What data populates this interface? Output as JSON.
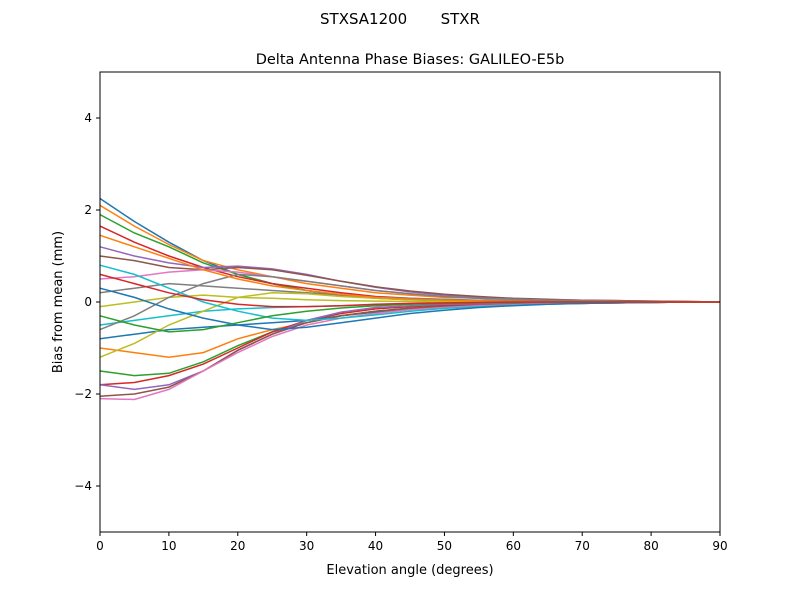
{
  "chart_data": {
    "type": "line",
    "suptitle": "STXSA1200       STXR",
    "title": "Delta Antenna Phase Biases: GALILEO-E5b",
    "xlabel": "Elevation angle (degrees)",
    "ylabel": "Bias from mean (mm)",
    "xlim": [
      0,
      90
    ],
    "ylim": [
      -5,
      5
    ],
    "xticks": [
      0,
      10,
      20,
      30,
      40,
      50,
      60,
      70,
      80,
      90
    ],
    "yticks": [
      -4,
      -2,
      0,
      2,
      4
    ],
    "ytick_labels": [
      "−4",
      "−2",
      "0",
      "2",
      "4"
    ],
    "grid": false,
    "colors": [
      "#1f77b4",
      "#ff7f0e",
      "#2ca02c",
      "#d62728",
      "#9467bd",
      "#8c564b",
      "#e377c2",
      "#7f7f7f",
      "#bcbd22",
      "#17becf"
    ],
    "x": [
      0,
      5,
      10,
      15,
      20,
      25,
      30,
      35,
      40,
      45,
      50,
      55,
      60,
      65,
      70,
      75,
      80,
      85,
      90
    ],
    "series": [
      {
        "values": [
          2.25,
          1.75,
          1.3,
          0.9,
          0.6,
          0.4,
          0.25,
          0.15,
          0.1,
          0.06,
          0.04,
          0.03,
          0.02,
          0.02,
          0.01,
          0.01,
          0,
          0,
          0
        ]
      },
      {
        "values": [
          2.1,
          1.65,
          1.25,
          0.9,
          0.7,
          0.55,
          0.4,
          0.3,
          0.2,
          0.15,
          0.1,
          0.08,
          0.06,
          0.05,
          0.04,
          0.03,
          0.02,
          0.01,
          0
        ]
      },
      {
        "values": [
          1.9,
          1.5,
          1.2,
          0.85,
          0.6,
          0.4,
          0.25,
          0.15,
          0.08,
          0.05,
          0.03,
          0.02,
          0.01,
          0.01,
          0,
          0,
          0,
          0,
          0
        ]
      },
      {
        "values": [
          1.65,
          1.3,
          1.0,
          0.75,
          0.55,
          0.4,
          0.3,
          0.2,
          0.12,
          0.08,
          0.05,
          0.03,
          0.02,
          0.01,
          0.01,
          0,
          0,
          0,
          0
        ]
      },
      {
        "values": [
          1.2,
          1.0,
          0.85,
          0.75,
          0.78,
          0.72,
          0.6,
          0.45,
          0.32,
          0.22,
          0.15,
          0.1,
          0.07,
          0.05,
          0.04,
          0.03,
          0.02,
          0.01,
          0
        ]
      },
      {
        "values": [
          1.0,
          0.9,
          0.75,
          0.7,
          0.75,
          0.7,
          0.58,
          0.45,
          0.33,
          0.24,
          0.17,
          0.12,
          0.08,
          0.06,
          0.04,
          0.03,
          0.02,
          0.01,
          0
        ]
      },
      {
        "values": [
          0.5,
          0.55,
          0.65,
          0.7,
          0.65,
          0.55,
          0.45,
          0.35,
          0.25,
          0.18,
          0.12,
          0.08,
          0.06,
          0.04,
          0.03,
          0.02,
          0.01,
          0,
          0
        ]
      },
      {
        "values": [
          0.2,
          0.3,
          0.4,
          0.35,
          0.3,
          0.25,
          0.2,
          0.15,
          0.1,
          0.08,
          0.06,
          0.04,
          0.03,
          0.02,
          0.01,
          0.01,
          0,
          0,
          0
        ]
      },
      {
        "values": [
          -0.1,
          0,
          0.1,
          0.15,
          0.1,
          0.08,
          0.05,
          0.03,
          0.02,
          0.01,
          0,
          0,
          0,
          0,
          0,
          0,
          0,
          0,
          0
        ]
      },
      {
        "values": [
          -0.5,
          -0.4,
          -0.3,
          -0.2,
          -0.15,
          -0.12,
          -0.1,
          -0.08,
          -0.06,
          -0.04,
          -0.03,
          -0.02,
          -0.01,
          0,
          0,
          0,
          0,
          0,
          0
        ]
      },
      {
        "values": [
          -0.8,
          -0.7,
          -0.6,
          -0.55,
          -0.5,
          -0.45,
          -0.4,
          -0.3,
          -0.22,
          -0.15,
          -0.1,
          -0.07,
          -0.05,
          -0.03,
          -0.02,
          -0.01,
          0,
          0,
          0
        ]
      },
      {
        "values": [
          -1.0,
          -1.1,
          -1.2,
          -1.1,
          -0.8,
          -0.6,
          -0.45,
          -0.3,
          -0.2,
          -0.14,
          -0.1,
          -0.07,
          -0.05,
          -0.03,
          -0.02,
          -0.01,
          0,
          0,
          0
        ]
      },
      {
        "values": [
          -1.5,
          -1.6,
          -1.55,
          -1.3,
          -0.95,
          -0.65,
          -0.45,
          -0.3,
          -0.2,
          -0.13,
          -0.1,
          -0.07,
          -0.05,
          -0.04,
          -0.03,
          -0.02,
          -0.01,
          0,
          0
        ]
      },
      {
        "values": [
          -1.8,
          -1.75,
          -1.6,
          -1.35,
          -1.0,
          -0.65,
          -0.4,
          -0.25,
          -0.15,
          -0.1,
          -0.07,
          -0.05,
          -0.04,
          -0.03,
          -0.02,
          -0.01,
          0,
          0,
          0
        ]
      },
      {
        "values": [
          -1.8,
          -1.9,
          -1.8,
          -1.5,
          -1.05,
          -0.7,
          -0.4,
          -0.22,
          -0.12,
          -0.08,
          -0.05,
          -0.04,
          -0.03,
          -0.02,
          -0.01,
          0,
          0,
          0,
          0
        ]
      },
      {
        "values": [
          -2.05,
          -2.0,
          -1.85,
          -1.5,
          -1.05,
          -0.7,
          -0.45,
          -0.3,
          -0.2,
          -0.14,
          -0.1,
          -0.07,
          -0.05,
          -0.04,
          -0.03,
          -0.02,
          -0.01,
          0,
          0
        ]
      },
      {
        "values": [
          -2.1,
          -2.12,
          -1.9,
          -1.5,
          -1.1,
          -0.75,
          -0.5,
          -0.35,
          -0.25,
          -0.17,
          -0.12,
          -0.08,
          -0.06,
          -0.04,
          -0.03,
          -0.02,
          -0.01,
          0,
          0
        ]
      },
      {
        "values": [
          -0.6,
          -0.3,
          0.1,
          0.4,
          0.6,
          0.55,
          0.45,
          0.35,
          0.25,
          0.18,
          0.12,
          0.08,
          0.06,
          0.04,
          0.03,
          0.02,
          0.01,
          0,
          0
        ]
      },
      {
        "values": [
          -1.2,
          -0.9,
          -0.5,
          -0.2,
          0.1,
          0.2,
          0.18,
          0.12,
          0.08,
          0.05,
          0.03,
          0.02,
          0.01,
          0,
          0,
          0,
          0,
          0,
          0
        ]
      },
      {
        "values": [
          0.8,
          0.6,
          0.3,
          0,
          -0.2,
          -0.35,
          -0.4,
          -0.35,
          -0.28,
          -0.2,
          -0.14,
          -0.1,
          -0.07,
          -0.05,
          -0.03,
          -0.02,
          -0.01,
          0,
          0
        ]
      },
      {
        "values": [
          0.3,
          0.1,
          -0.15,
          -0.35,
          -0.5,
          -0.6,
          -0.55,
          -0.45,
          -0.35,
          -0.25,
          -0.18,
          -0.12,
          -0.08,
          -0.05,
          -0.03,
          -0.02,
          -0.01,
          0,
          0
        ]
      },
      {
        "values": [
          1.45,
          1.2,
          0.95,
          0.7,
          0.5,
          0.35,
          0.25,
          0.17,
          0.1,
          0.06,
          0.04,
          0.02,
          0.01,
          0,
          0,
          0,
          0,
          0,
          0
        ]
      },
      {
        "values": [
          -0.3,
          -0.5,
          -0.65,
          -0.6,
          -0.45,
          -0.3,
          -0.2,
          -0.13,
          -0.08,
          -0.05,
          -0.03,
          -0.02,
          -0.01,
          0,
          0,
          0,
          0,
          0,
          0
        ]
      },
      {
        "values": [
          0.6,
          0.4,
          0.2,
          0.05,
          -0.05,
          -0.1,
          -0.1,
          -0.08,
          -0.05,
          -0.03,
          -0.02,
          -0.01,
          0,
          0,
          0,
          0,
          0,
          0,
          0
        ]
      }
    ]
  }
}
